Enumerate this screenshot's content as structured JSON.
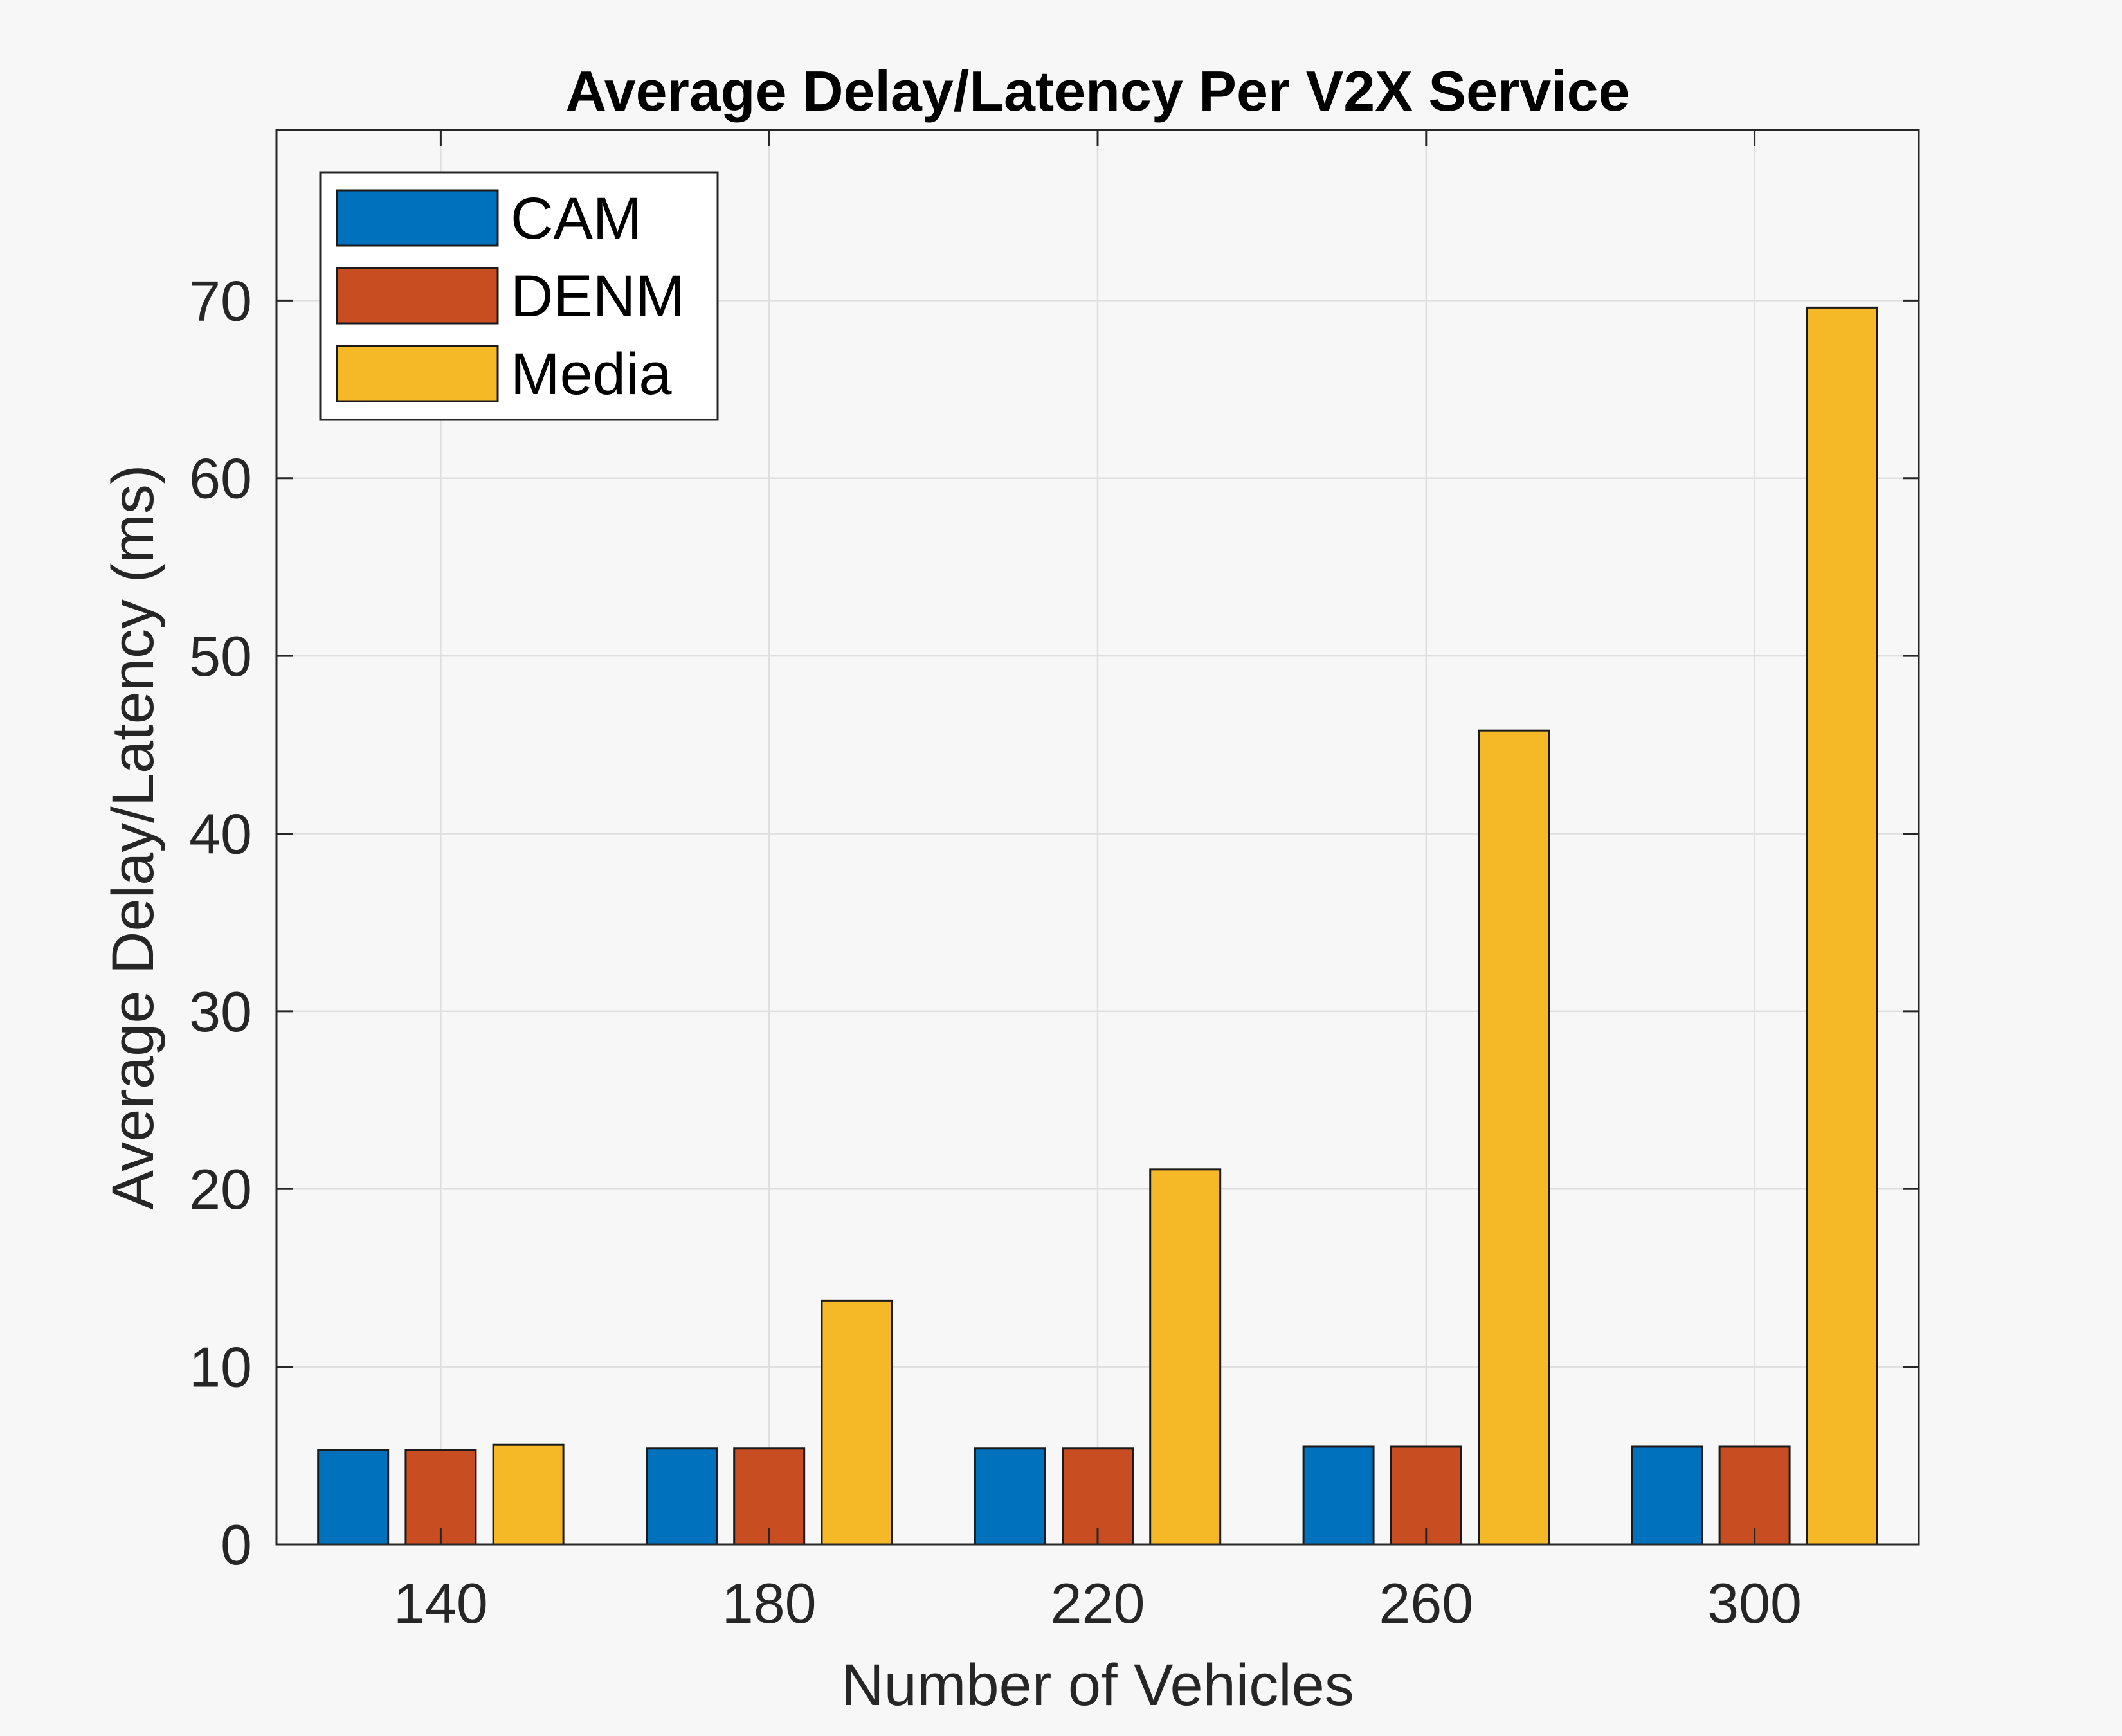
{
  "chart_data": {
    "type": "bar",
    "title": "Average Delay/Latency Per V2X Service",
    "xlabel": "Number of Vehicles",
    "ylabel": "Average Delay/Latency (ms)",
    "categories": [
      "140",
      "180",
      "220",
      "260",
      "300"
    ],
    "ylim": [
      0,
      79.6
    ],
    "yticks": [
      0,
      10,
      20,
      30,
      40,
      50,
      60,
      70
    ],
    "grid": true,
    "legend_position": "top-left",
    "series": [
      {
        "name": "CAM",
        "color": "#0072BD",
        "values": [
          5.3,
          5.4,
          5.4,
          5.5,
          5.5
        ]
      },
      {
        "name": "DENM",
        "color": "#C84E22",
        "values": [
          5.3,
          5.4,
          5.4,
          5.5,
          5.5
        ]
      },
      {
        "name": "Media",
        "color": "#F5B826",
        "values": [
          5.6,
          13.7,
          21.1,
          45.8,
          69.6
        ]
      }
    ]
  }
}
